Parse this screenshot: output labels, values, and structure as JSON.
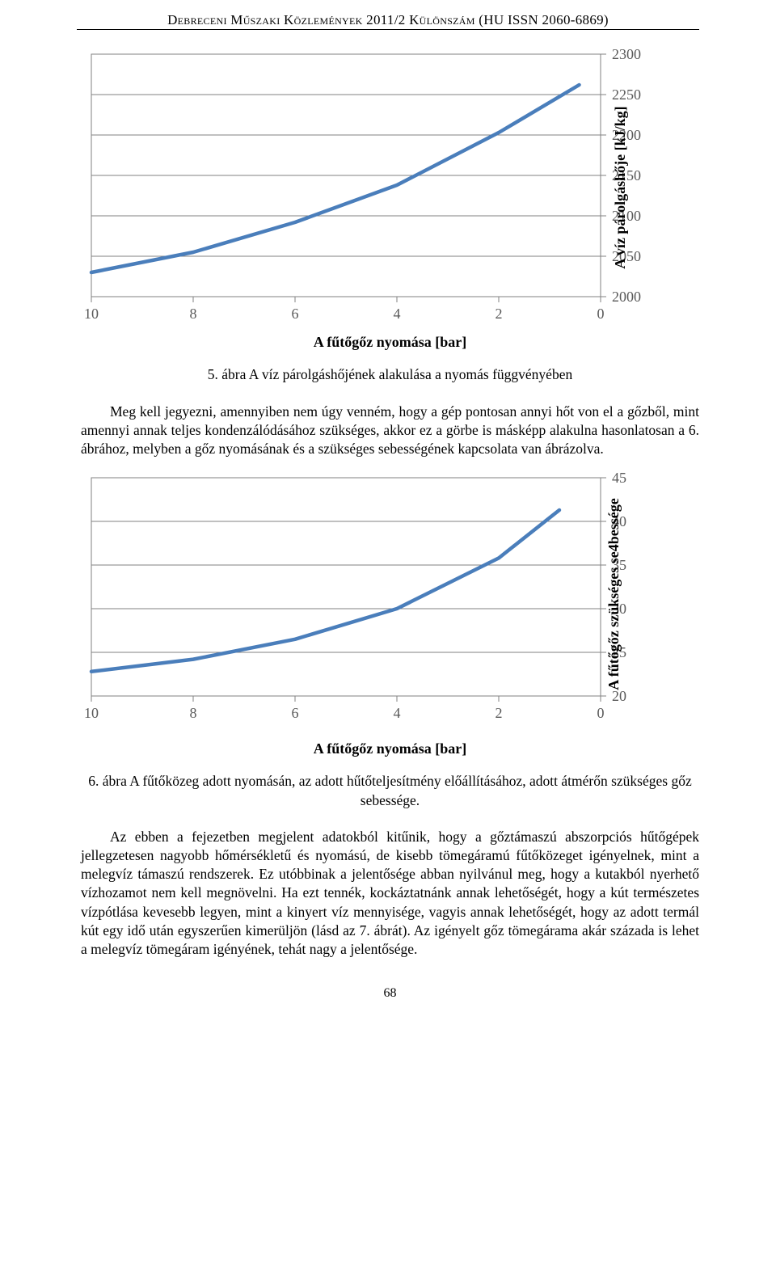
{
  "header": {
    "text": "Debreceni Műszaki Közlemények 2011/2 Különszám (HU ISSN 2060-6869)"
  },
  "chart1": {
    "type": "line",
    "x_label": "A fűtőgőz nyomása [bar]",
    "y_label": "A víz párolgáshője [kJ/kg]",
    "x_ticks": [
      10,
      8,
      6,
      4,
      2,
      0
    ],
    "y_ticks": [
      2000,
      2050,
      2100,
      2150,
      2200,
      2250,
      2300
    ],
    "xlim": [
      10,
      0
    ],
    "ylim": [
      2000,
      2300
    ],
    "line_color": "#4a7ebb",
    "grid_color": "#828282",
    "background_color": "#ffffff",
    "tick_color": "#595959",
    "line_width": 4.5,
    "data_points": [
      {
        "x": 10,
        "y": 2030
      },
      {
        "x": 8,
        "y": 2055
      },
      {
        "x": 6,
        "y": 2092
      },
      {
        "x": 4,
        "y": 2138
      },
      {
        "x": 2,
        "y": 2203
      },
      {
        "x": 0.42,
        "y": 2262
      }
    ]
  },
  "caption1": "5. ábra A víz párolgáshőjének alakulása a nyomás függvényében",
  "paragraph1": "Meg kell jegyezni, amennyiben nem úgy venném, hogy a gép pontosan annyi hőt von el a gőzből, mint amennyi annak teljes kondenzálódásához szükséges, akkor ez a görbe is másképp alakulna hasonlatosan a 6. ábrához, melyben a gőz nyomásának és a szükséges sebességének kapcsolata van ábrázolva.",
  "chart2": {
    "type": "line",
    "x_label": "A fűtőgőz nyomása [bar]",
    "y_label": "A fűtőgőz szükséges se4bessége",
    "x_ticks": [
      10,
      8,
      6,
      4,
      2,
      0
    ],
    "y_ticks": [
      20,
      25,
      30,
      35,
      40,
      45
    ],
    "xlim": [
      10,
      0
    ],
    "ylim": [
      20,
      45
    ],
    "line_color": "#4a7ebb",
    "grid_color": "#828282",
    "background_color": "#ffffff",
    "tick_color": "#595959",
    "line_width": 4.5,
    "data_points": [
      {
        "x": 10,
        "y": 22.8
      },
      {
        "x": 8,
        "y": 24.2
      },
      {
        "x": 6,
        "y": 26.5
      },
      {
        "x": 4,
        "y": 30.0
      },
      {
        "x": 2,
        "y": 35.8
      },
      {
        "x": 0.81,
        "y": 41.3
      }
    ]
  },
  "caption2": "6. ábra A fűtőközeg adott nyomásán, az adott hűtőteljesítmény előállításához, adott átmérőn szükséges gőz sebessége.",
  "paragraph2": "Az ebben a fejezetben megjelent adatokból kitűnik, hogy a gőztámaszú abszorpciós hűtőgépek jellegzetesen nagyobb hőmérsékletű és nyomású, de kisebb tömegáramú fűtőközeget igényelnek, mint a melegvíz támaszú rendszerek. Ez utóbbinak a jelentősége abban nyilvánul meg, hogy a kutakból nyerhető vízhozamot nem kell megnövelni. Ha ezt tennék, kockáztatnánk annak lehetőségét, hogy a kút természetes vízpótlása kevesebb legyen, mint a kinyert víz mennyisége, vagyis annak lehetőségét, hogy az adott termál kút egy idő után egyszerűen kimerüljön (lásd az 7. ábrát). Az igényelt gőz tömegárama akár százada is lehet a melegvíz tömegáram igényének, tehát nagy a jelentősége.",
  "page_number": "68"
}
